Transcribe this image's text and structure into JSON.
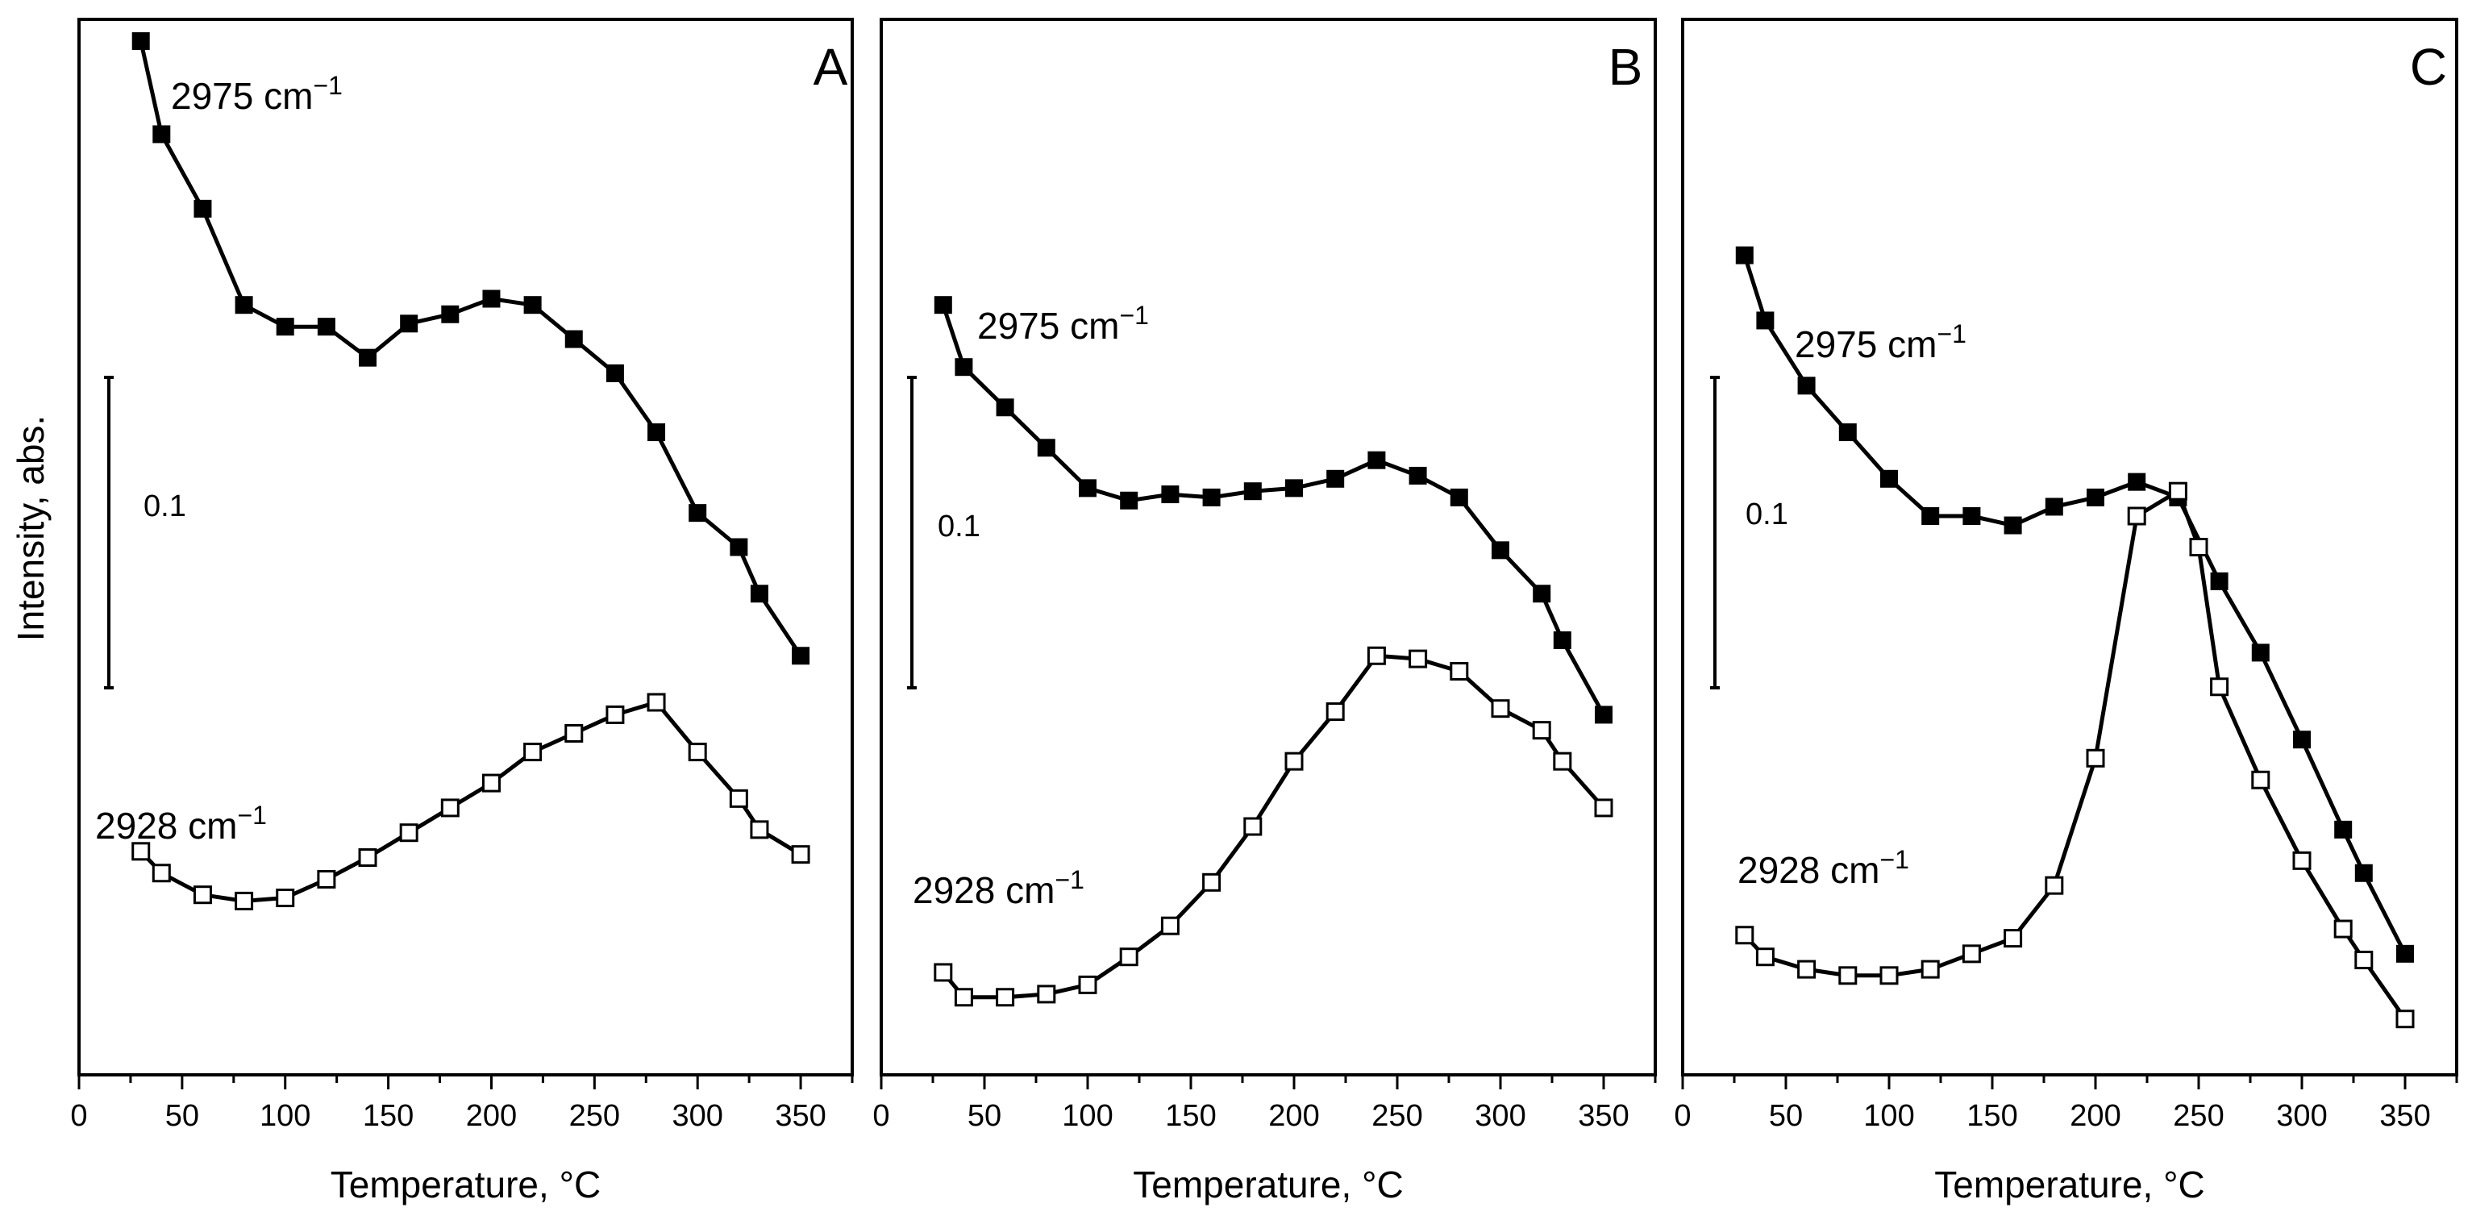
{
  "y_axis_label": "Intensity, abs.",
  "chart_data": [
    {
      "panel": "A",
      "type": "line",
      "xlabel": "Temperature,  °C",
      "ylabel": "Intensity, abs.",
      "xlim": [
        0,
        375
      ],
      "ylim": [
        0.0,
        0.34
      ],
      "xticks": [
        0,
        50,
        100,
        150,
        200,
        250,
        300,
        350
      ],
      "scale_bar": {
        "label": "0.1",
        "value": 0.1
      },
      "series": [
        {
          "name": "2975 cm⁻¹",
          "marker": "filled-square",
          "x": [
            30,
            40,
            60,
            80,
            100,
            120,
            140,
            160,
            180,
            200,
            220,
            240,
            260,
            280,
            300,
            320,
            330,
            350
          ],
          "y": [
            0.333,
            0.303,
            0.279,
            0.248,
            0.241,
            0.241,
            0.231,
            0.242,
            0.245,
            0.25,
            0.248,
            0.237,
            0.226,
            0.207,
            0.181,
            0.17,
            0.155,
            0.135
          ]
        },
        {
          "name": "2928 cm⁻¹",
          "marker": "open-square",
          "x": [
            30,
            40,
            60,
            80,
            100,
            120,
            140,
            160,
            180,
            200,
            220,
            240,
            260,
            280,
            300,
            320,
            330,
            350
          ],
          "y": [
            0.072,
            0.065,
            0.058,
            0.056,
            0.057,
            0.063,
            0.07,
            0.078,
            0.086,
            0.094,
            0.104,
            0.11,
            0.116,
            0.12,
            0.104,
            0.089,
            0.079,
            0.071
          ]
        }
      ]
    },
    {
      "panel": "B",
      "type": "line",
      "xlabel": "Temperature,  °C",
      "ylabel": "Intensity, abs.",
      "xlim": [
        0,
        375
      ],
      "ylim": [
        0.0,
        0.34
      ],
      "xticks": [
        0,
        50,
        100,
        150,
        200,
        250,
        300,
        350
      ],
      "scale_bar": {
        "label": "0.1",
        "value": 0.1
      },
      "series": [
        {
          "name": "2975 cm⁻¹",
          "marker": "filled-square",
          "x": [
            30,
            40,
            60,
            80,
            100,
            120,
            140,
            160,
            180,
            200,
            220,
            240,
            260,
            280,
            300,
            320,
            330,
            350
          ],
          "y": [
            0.248,
            0.228,
            0.215,
            0.202,
            0.189,
            0.185,
            0.187,
            0.186,
            0.188,
            0.189,
            0.192,
            0.198,
            0.193,
            0.186,
            0.169,
            0.155,
            0.14,
            0.116
          ]
        },
        {
          "name": "2928 cm⁻¹",
          "marker": "open-square",
          "x": [
            30,
            40,
            60,
            80,
            100,
            120,
            140,
            160,
            180,
            200,
            220,
            240,
            260,
            280,
            300,
            320,
            330,
            350
          ],
          "y": [
            0.033,
            0.025,
            0.025,
            0.026,
            0.029,
            0.038,
            0.048,
            0.062,
            0.08,
            0.101,
            0.117,
            0.135,
            0.134,
            0.13,
            0.118,
            0.111,
            0.101,
            0.086
          ]
        }
      ]
    },
    {
      "panel": "C",
      "type": "line",
      "xlabel": "Temperature,  °C",
      "ylabel": "Intensity, abs.",
      "xlim": [
        0,
        375
      ],
      "ylim": [
        0.0,
        0.34
      ],
      "xticks": [
        0,
        50,
        100,
        150,
        200,
        250,
        300,
        350
      ],
      "scale_bar": {
        "label": "0.1",
        "value": 0.1
      },
      "series": [
        {
          "name": "2975 cm⁻¹",
          "marker": "filled-square",
          "x": [
            30,
            40,
            60,
            80,
            100,
            120,
            140,
            160,
            180,
            200,
            220,
            240,
            260,
            280,
            300,
            320,
            330,
            350
          ],
          "y": [
            0.264,
            0.243,
            0.222,
            0.207,
            0.192,
            0.18,
            0.18,
            0.177,
            0.183,
            0.186,
            0.191,
            0.186,
            0.159,
            0.136,
            0.108,
            0.079,
            0.065,
            0.039
          ]
        },
        {
          "name": "2928 cm⁻¹",
          "marker": "open-square",
          "x": [
            30,
            40,
            60,
            80,
            100,
            120,
            140,
            160,
            180,
            200,
            220,
            240,
            250,
            260,
            280,
            300,
            320,
            330,
            350
          ],
          "y": [
            0.045,
            0.038,
            0.034,
            0.032,
            0.032,
            0.034,
            0.039,
            0.044,
            0.061,
            0.102,
            0.18,
            0.188,
            0.17,
            0.125,
            0.095,
            0.069,
            0.047,
            0.037,
            0.018
          ]
        }
      ]
    }
  ]
}
